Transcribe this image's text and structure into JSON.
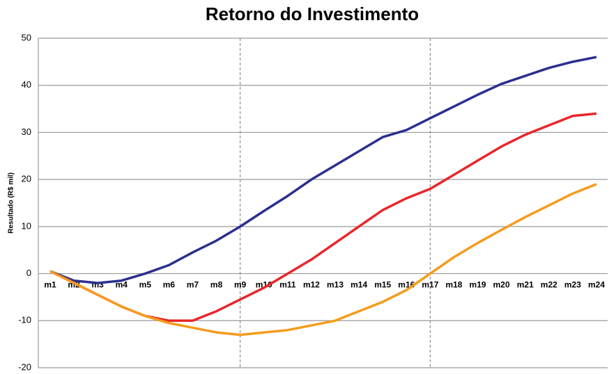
{
  "chart_data": {
    "type": "line",
    "title": "Retorno do Investimento",
    "ylabel": "Resultado (R$ mil)",
    "categories": [
      "m1",
      "m2",
      "m3",
      "m4",
      "m5",
      "m6",
      "m7",
      "m8",
      "m9",
      "m10",
      "m11",
      "m12",
      "m13",
      "m14",
      "m15",
      "m16",
      "m17",
      "m18",
      "m19",
      "m20",
      "m21",
      "m22",
      "m23",
      "m24"
    ],
    "series": [
      {
        "color": "#2b2f8f",
        "values": [
          0.5,
          -1.5,
          -2,
          -1.5,
          0,
          1.8,
          4.5,
          7,
          10,
          13.3,
          16.5,
          20,
          23,
          26,
          29,
          30.5,
          33,
          35.5,
          38,
          40.3,
          42,
          43.7,
          45,
          46
        ]
      },
      {
        "color": "#e8262a",
        "values": [
          0.5,
          -2,
          -4.5,
          -7,
          -9,
          -10,
          -10,
          -8,
          -5.5,
          -3,
          0,
          3,
          6.5,
          10,
          13.5,
          16,
          18,
          21,
          24,
          27,
          29.5,
          31.5,
          33.5,
          34
        ]
      },
      {
        "color": "#f59b1c",
        "values": [
          0.5,
          -2,
          -4.5,
          -7,
          -9,
          -10.5,
          -11.5,
          -12.5,
          -13,
          -12.5,
          -12,
          -11,
          -10,
          -8,
          -6,
          -3.5,
          0,
          3.5,
          6.5,
          9.3,
          12,
          14.5,
          17,
          19
        ]
      }
    ],
    "markers": [
      "m9",
      "m17"
    ],
    "ylim": [
      -20,
      50
    ],
    "yticks": [
      -20,
      -10,
      0,
      10,
      20,
      30,
      40,
      50
    ],
    "grid": true
  }
}
